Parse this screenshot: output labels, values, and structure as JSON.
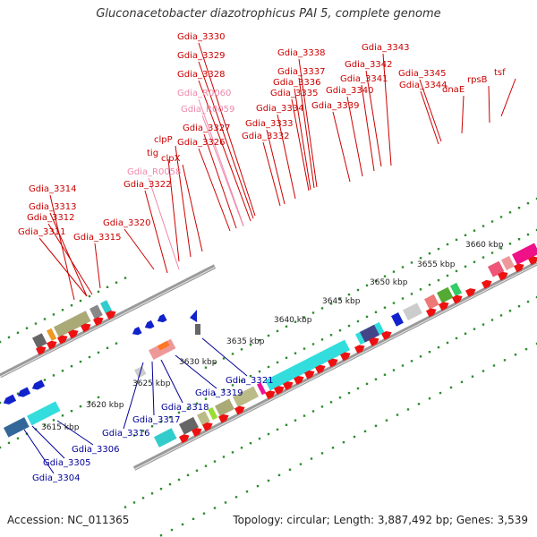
{
  "title": "Gluconacetobacter diazotrophicus PAI 5, complete genome",
  "footer": {
    "accession": "Accession: NC_011365",
    "topology": "Topology: circular; Length: 3,887,492 bp; Genes: 3,539"
  },
  "colors": {
    "label_red": "#cc0000",
    "label_pink": "#ee88aa",
    "label_blue": "#000099",
    "backbone": "#9a9a9a",
    "tick_green": "#2e8b2e"
  },
  "scale_labels": [
    "3615 kbp",
    "3620 kbp",
    "3625 kbp",
    "3630 kbp",
    "3635 kbp",
    "3640 kbp",
    "3645 kbp",
    "3650 kbp",
    "3655 kbp",
    "3660 kbp"
  ],
  "top_labels": [
    {
      "text": "Gdia_3330",
      "tone": "red"
    },
    {
      "text": "Gdia_3329",
      "tone": "red"
    },
    {
      "text": "Gdia_3328",
      "tone": "red"
    },
    {
      "text": "Gdia_R0060",
      "tone": "pink"
    },
    {
      "text": "Gdia_R0059",
      "tone": "pink"
    },
    {
      "text": "Gdia_3327",
      "tone": "red"
    },
    {
      "text": "Gdia_3326",
      "tone": "red"
    },
    {
      "text": "clpP",
      "tone": "red"
    },
    {
      "text": "tig",
      "tone": "red"
    },
    {
      "text": "clpX",
      "tone": "red"
    },
    {
      "text": "Gdia_R0058",
      "tone": "pink"
    },
    {
      "text": "Gdia_3322",
      "tone": "red"
    },
    {
      "text": "Gdia_3338",
      "tone": "red"
    },
    {
      "text": "Gdia_3337",
      "tone": "red"
    },
    {
      "text": "Gdia_3336",
      "tone": "red"
    },
    {
      "text": "Gdia_3335",
      "tone": "red"
    },
    {
      "text": "Gdia_3334",
      "tone": "red"
    },
    {
      "text": "Gdia_3333",
      "tone": "red"
    },
    {
      "text": "Gdia_3332",
      "tone": "red"
    },
    {
      "text": "Gdia_3343",
      "tone": "red"
    },
    {
      "text": "Gdia_3342",
      "tone": "red"
    },
    {
      "text": "Gdia_3341",
      "tone": "red"
    },
    {
      "text": "Gdia_3340",
      "tone": "red"
    },
    {
      "text": "Gdia_3339",
      "tone": "red"
    },
    {
      "text": "Gdia_3345",
      "tone": "red"
    },
    {
      "text": "Gdia_3344",
      "tone": "red"
    },
    {
      "text": "dnaE",
      "tone": "red"
    },
    {
      "text": "rpsB",
      "tone": "red"
    },
    {
      "text": "tsf",
      "tone": "red"
    },
    {
      "text": "Gdia_3314",
      "tone": "red"
    },
    {
      "text": "Gdia_3313",
      "tone": "red"
    },
    {
      "text": "Gdia_3312",
      "tone": "red"
    },
    {
      "text": "Gdia_3311",
      "tone": "red"
    },
    {
      "text": "Gdia_3315",
      "tone": "red"
    },
    {
      "text": "Gdia_3320",
      "tone": "red"
    }
  ],
  "bottom_labels": [
    {
      "text": "Gdia_3321"
    },
    {
      "text": "Gdia_3319"
    },
    {
      "text": "Gdia_3318"
    },
    {
      "text": "Gdia_3317"
    },
    {
      "text": "Gdia_3316"
    },
    {
      "text": "Gdia_3306"
    },
    {
      "text": "Gdia_3305"
    },
    {
      "text": "Gdia_3304"
    }
  ]
}
